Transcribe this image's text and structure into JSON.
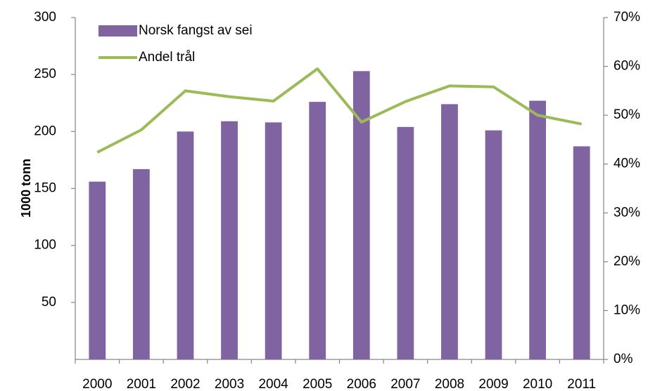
{
  "chart_data": {
    "type": "bar-line",
    "y_label": "1000 tonn",
    "categories": [
      "2000",
      "2001",
      "2002",
      "2003",
      "2004",
      "2005",
      "2006",
      "2007",
      "2008",
      "2009",
      "2010",
      "2011"
    ],
    "series": [
      {
        "name": "Norsk fangst av sei",
        "type": "bar",
        "color": "#8064a2",
        "values": [
          156,
          167,
          200,
          209,
          208,
          226,
          253,
          204,
          224,
          201,
          227,
          187
        ]
      },
      {
        "name": "Andel trål",
        "type": "line",
        "color": "#9bbb59",
        "axis": "y2",
        "values": [
          42.4,
          47,
          55,
          53.8,
          52.9,
          59.5,
          48.6,
          52.8,
          56,
          55.8,
          50,
          48.2
        ]
      }
    ],
    "ylim": [
      0,
      300
    ],
    "yticks": [
      50,
      100,
      150,
      200,
      250,
      300
    ],
    "y2lim": [
      0,
      70
    ],
    "y2ticks": [
      {
        "value": 0,
        "label": "0%"
      },
      {
        "value": 10,
        "label": "10%"
      },
      {
        "value": 20,
        "label": "20%"
      },
      {
        "value": 30,
        "label": "30%"
      },
      {
        "value": 40,
        "label": "40%"
      },
      {
        "value": 50,
        "label": "50%"
      },
      {
        "value": 60,
        "label": "60%"
      },
      {
        "value": 70,
        "label": "70%"
      }
    ],
    "grid": false,
    "legend": "upper left"
  }
}
